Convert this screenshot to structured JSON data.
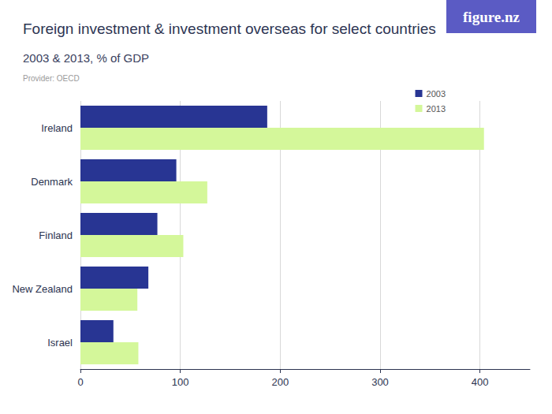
{
  "chart_data": {
    "type": "bar",
    "orientation": "horizontal",
    "title": "Foreign investment & investment overseas for select countries",
    "subtitle": "2003 & 2013, % of GDP",
    "caption": "Provider: OECD",
    "brand": "figure.nz",
    "categories": [
      "Ireland",
      "Denmark",
      "Finland",
      "New Zealand",
      "Israel"
    ],
    "series": [
      {
        "name": "2003",
        "color": "#283593",
        "values": [
          187,
          96,
          77,
          68,
          33
        ]
      },
      {
        "name": "2013",
        "color": "#d4f79a",
        "values": [
          404,
          127,
          103,
          57,
          58
        ]
      }
    ],
    "xlim": [
      0,
      450
    ],
    "xticks": [
      0,
      100,
      200,
      300,
      400
    ],
    "grid": true,
    "legend": "top-right"
  }
}
